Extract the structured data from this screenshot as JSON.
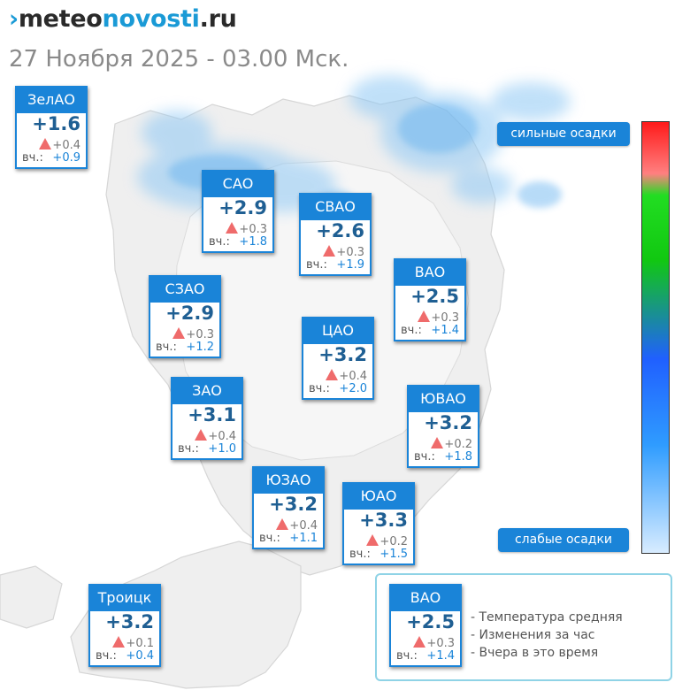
{
  "logo": {
    "mark": "›",
    "part1": "meteo",
    "part2": "novosti",
    "part3": ".ru"
  },
  "datetime": "27 Ноября 2025 - 03.00 Мск.",
  "scale": {
    "strong_label": "сильные осадки",
    "weak_label": "слабые осадки"
  },
  "labels": {
    "yesterday_prefix": "вч.:"
  },
  "districts": [
    {
      "name": "ЗелАО",
      "temp": "+1.6",
      "change": "+0.4",
      "yesterday": "+0.9"
    },
    {
      "name": "САО",
      "temp": "+2.9",
      "change": "+0.3",
      "yesterday": "+1.8"
    },
    {
      "name": "СВАО",
      "temp": "+2.6",
      "change": "+0.3",
      "yesterday": "+1.9"
    },
    {
      "name": "ВАО",
      "temp": "+2.5",
      "change": "+0.3",
      "yesterday": "+1.4"
    },
    {
      "name": "СЗАО",
      "temp": "+2.9",
      "change": "+0.3",
      "yesterday": "+1.2"
    },
    {
      "name": "ЦАО",
      "temp": "+3.2",
      "change": "+0.4",
      "yesterday": "+2.0"
    },
    {
      "name": "ЗАО",
      "temp": "+3.1",
      "change": "+0.4",
      "yesterday": "+1.0"
    },
    {
      "name": "ЮВАО",
      "temp": "+3.2",
      "change": "+0.2",
      "yesterday": "+1.8"
    },
    {
      "name": "ЮЗАО",
      "temp": "+3.2",
      "change": "+0.4",
      "yesterday": "+1.1"
    },
    {
      "name": "ЮАО",
      "temp": "+3.3",
      "change": "+0.2",
      "yesterday": "+1.5"
    },
    {
      "name": "Троицк",
      "temp": "+3.2",
      "change": "+0.1",
      "yesterday": "+0.4"
    }
  ],
  "legend": {
    "sample": {
      "name": "ВАО",
      "temp": "+2.5",
      "change": "+0.3",
      "yesterday": "+1.4"
    },
    "line1": "- Температура средняя",
    "line2": "- Изменения за час",
    "line3": "- Вчера в это время"
  },
  "colors": {
    "accent": "#1a84d8",
    "temp_text": "#1f5f93",
    "rise_triangle": "#ef6b6b",
    "precip": "#8ec8f4"
  }
}
